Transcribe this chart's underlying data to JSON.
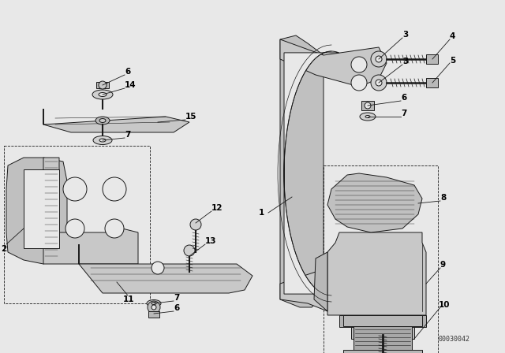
{
  "bg_color": "#e8e8e8",
  "line_color": "#1a1a1a",
  "part_number": "00030042",
  "fig_width": 6.4,
  "fig_height": 4.48,
  "dpi": 100
}
